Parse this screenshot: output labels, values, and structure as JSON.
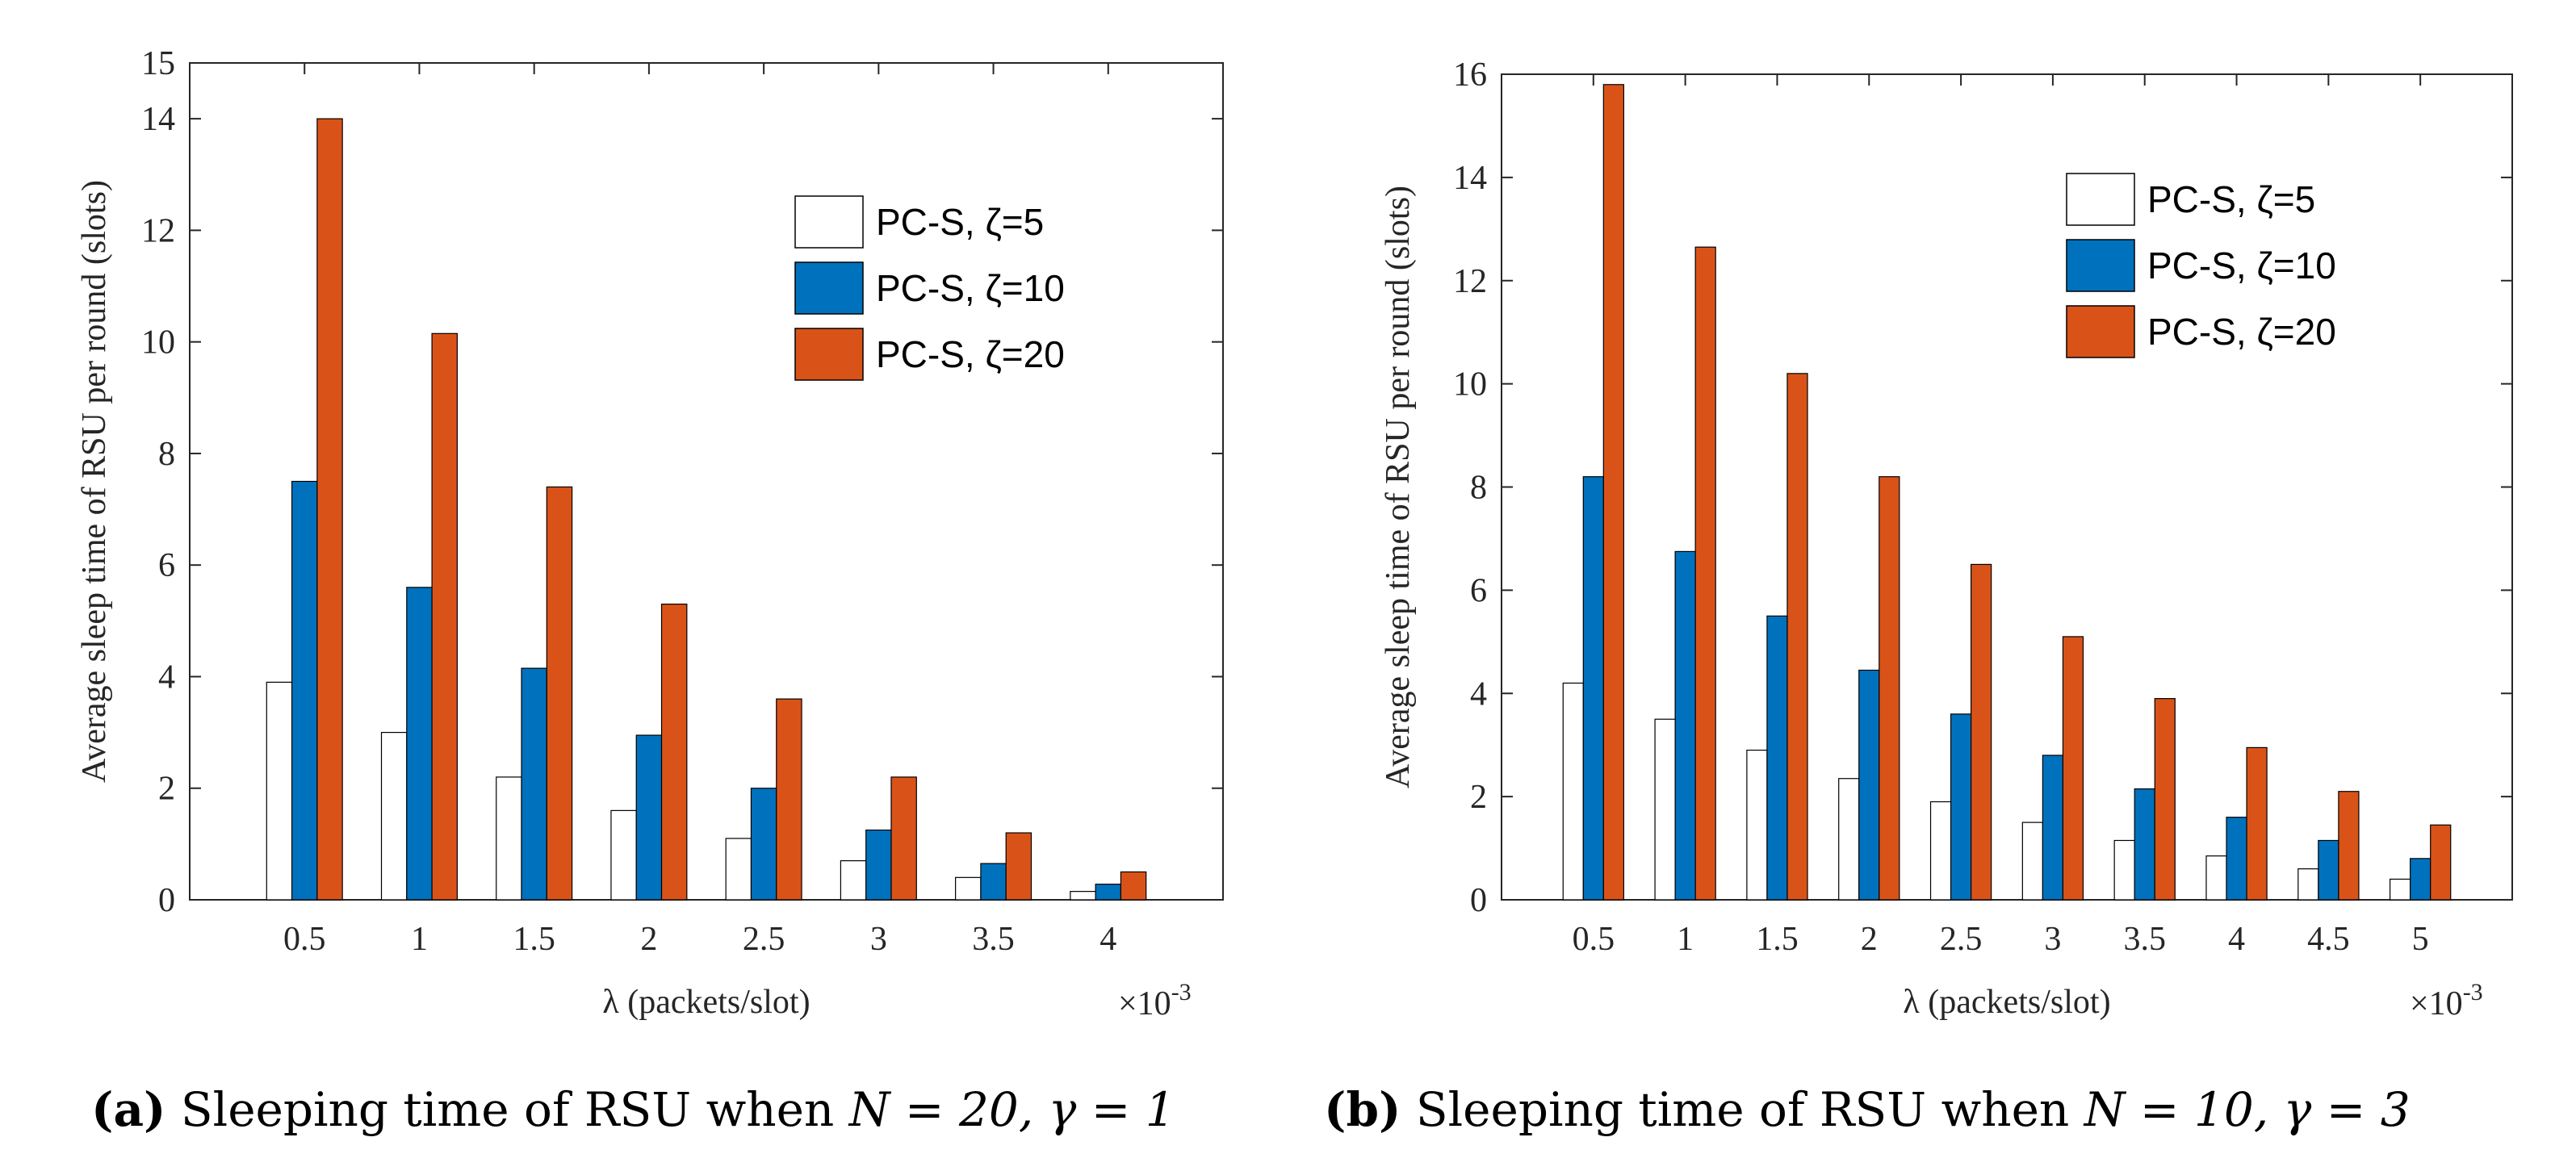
{
  "colors": {
    "series": [
      "#ffffff",
      "#0072bd",
      "#d95319"
    ],
    "axis": "#262626",
    "bar_edge": "#000000"
  },
  "chart_data": [
    {
      "type": "bar",
      "title": "",
      "xlabel": "λ (packets/slot)",
      "ylabel": "Average sleep time of RSU per round (slots)",
      "x_exponent_base": "×10",
      "x_exponent_power": "-3",
      "categories": [
        "0.5",
        "1",
        "1.5",
        "2",
        "2.5",
        "3",
        "3.5",
        "4"
      ],
      "ylim": [
        0,
        15
      ],
      "yticks": [
        "0",
        "2",
        "4",
        "6",
        "8",
        "10",
        "12",
        "14",
        "15"
      ],
      "legend_position": "top-right",
      "series": [
        {
          "name": "PC-S, ζ=5",
          "values": [
            3.9,
            3.0,
            2.2,
            1.6,
            1.1,
            0.7,
            0.4,
            0.15
          ]
        },
        {
          "name": "PC-S, ζ=10",
          "values": [
            7.5,
            5.6,
            4.15,
            2.95,
            2.0,
            1.25,
            0.65,
            0.28
          ]
        },
        {
          "name": "PC-S, ζ=20",
          "values": [
            14.0,
            10.15,
            7.4,
            5.3,
            3.6,
            2.2,
            1.2,
            0.5
          ]
        }
      ],
      "caption_label": "(a)",
      "caption_text": " Sleeping time of RSU when ",
      "caption_math": "N = 20, γ = 1"
    },
    {
      "type": "bar",
      "title": "",
      "xlabel": "λ (packets/slot)",
      "ylabel": "Average sleep time of RSU per round (slots)",
      "x_exponent_base": "×10",
      "x_exponent_power": "-3",
      "categories": [
        "0.5",
        "1",
        "1.5",
        "2",
        "2.5",
        "3",
        "3.5",
        "4",
        "4.5",
        "5"
      ],
      "ylim": [
        0,
        16
      ],
      "yticks": [
        "0",
        "2",
        "4",
        "6",
        "8",
        "10",
        "12",
        "14",
        "16"
      ],
      "legend_position": "top-right",
      "series": [
        {
          "name": "PC-S, ζ=5",
          "values": [
            4.2,
            3.5,
            2.9,
            2.35,
            1.9,
            1.5,
            1.15,
            0.85,
            0.6,
            0.4
          ]
        },
        {
          "name": "PC-S, ζ=10",
          "values": [
            8.2,
            6.75,
            5.5,
            4.45,
            3.6,
            2.8,
            2.15,
            1.6,
            1.15,
            0.8
          ]
        },
        {
          "name": "PC-S, ζ=20",
          "values": [
            15.8,
            12.65,
            10.2,
            8.2,
            6.5,
            5.1,
            3.9,
            2.95,
            2.1,
            1.45
          ]
        }
      ],
      "caption_label": "(b)",
      "caption_text": " Sleeping time of RSU when ",
      "caption_math": "N = 10, γ = 3"
    }
  ]
}
